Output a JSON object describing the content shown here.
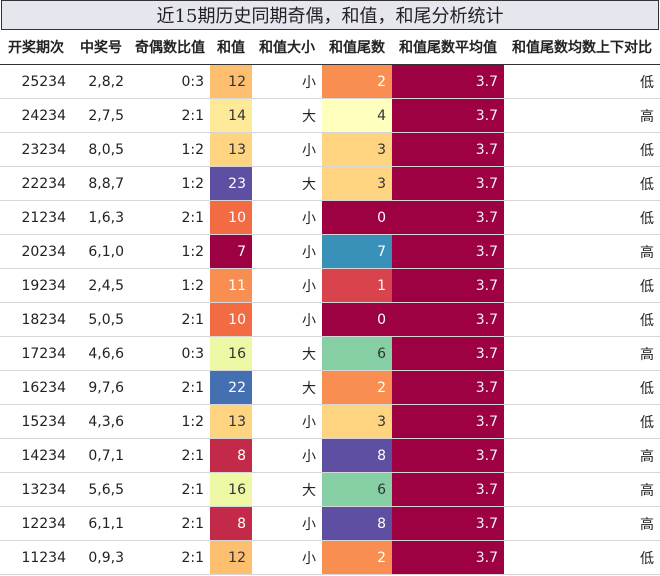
{
  "title": "近15期历史同期奇偶，和值，和尾分析统计",
  "headers": [
    "开奖期次",
    "中奖号",
    "奇偶数比值",
    "和值",
    "和值大小",
    "和值尾数",
    "和值尾数平均值",
    "和值尾数均数上下对比"
  ],
  "rows": [
    {
      "period": "25234",
      "numbers": "2,8,2",
      "ratio": "0:3",
      "sum": "12",
      "size": "小",
      "tail": "2",
      "avg": "3.7",
      "cmp": "低",
      "sum_bg": "#fdbf6f",
      "sum_fg": "#333333",
      "tail_bg": "#f98e52",
      "tail_fg": "#ffffff"
    },
    {
      "period": "24234",
      "numbers": "2,7,5",
      "ratio": "2:1",
      "sum": "14",
      "size": "大",
      "tail": "4",
      "avg": "3.7",
      "cmp": "高",
      "sum_bg": "#fee999",
      "sum_fg": "#333333",
      "tail_bg": "#ffffbe",
      "tail_fg": "#333333"
    },
    {
      "period": "23234",
      "numbers": "8,0,5",
      "ratio": "1:2",
      "sum": "13",
      "size": "小",
      "tail": "3",
      "avg": "3.7",
      "cmp": "低",
      "sum_bg": "#fed481",
      "sum_fg": "#333333",
      "tail_bg": "#fed481",
      "tail_fg": "#333333"
    },
    {
      "period": "22234",
      "numbers": "8,8,7",
      "ratio": "1:2",
      "sum": "23",
      "size": "大",
      "tail": "3",
      "avg": "3.7",
      "cmp": "低",
      "sum_bg": "#5e4fa2",
      "sum_fg": "#ffffff",
      "tail_bg": "#fed481",
      "tail_fg": "#333333"
    },
    {
      "period": "21234",
      "numbers": "1,6,3",
      "ratio": "2:1",
      "sum": "10",
      "size": "小",
      "tail": "0",
      "avg": "3.7",
      "cmp": "低",
      "sum_bg": "#f36b43",
      "sum_fg": "#ffffff",
      "tail_bg": "#9e0142",
      "tail_fg": "#ffffff"
    },
    {
      "period": "20234",
      "numbers": "6,1,0",
      "ratio": "1:2",
      "sum": "7",
      "size": "小",
      "tail": "7",
      "avg": "3.7",
      "cmp": "高",
      "sum_bg": "#9e0142",
      "sum_fg": "#ffffff",
      "tail_bg": "#3990b9",
      "tail_fg": "#ffffff"
    },
    {
      "period": "19234",
      "numbers": "2,4,5",
      "ratio": "1:2",
      "sum": "11",
      "size": "小",
      "tail": "1",
      "avg": "3.7",
      "cmp": "低",
      "sum_bg": "#f98e52",
      "sum_fg": "#ffffff",
      "tail_bg": "#d8434e",
      "tail_fg": "#ffffff"
    },
    {
      "period": "18234",
      "numbers": "5,0,5",
      "ratio": "2:1",
      "sum": "10",
      "size": "小",
      "tail": "0",
      "avg": "3.7",
      "cmp": "低",
      "sum_bg": "#f36b43",
      "sum_fg": "#ffffff",
      "tail_bg": "#9e0142",
      "tail_fg": "#ffffff"
    },
    {
      "period": "17234",
      "numbers": "4,6,6",
      "ratio": "0:3",
      "sum": "16",
      "size": "大",
      "tail": "6",
      "avg": "3.7",
      "cmp": "高",
      "sum_bg": "#eef8a4",
      "sum_fg": "#333333",
      "tail_bg": "#86cfa5",
      "tail_fg": "#333333"
    },
    {
      "period": "16234",
      "numbers": "9,7,6",
      "ratio": "2:1",
      "sum": "22",
      "size": "大",
      "tail": "2",
      "avg": "3.7",
      "cmp": "低",
      "sum_bg": "#4470b1",
      "sum_fg": "#ffffff",
      "tail_bg": "#f98e52",
      "tail_fg": "#ffffff"
    },
    {
      "period": "15234",
      "numbers": "4,3,6",
      "ratio": "1:2",
      "sum": "13",
      "size": "小",
      "tail": "3",
      "avg": "3.7",
      "cmp": "低",
      "sum_bg": "#fed481",
      "sum_fg": "#333333",
      "tail_bg": "#fed481",
      "tail_fg": "#333333"
    },
    {
      "period": "14234",
      "numbers": "0,7,1",
      "ratio": "2:1",
      "sum": "8",
      "size": "小",
      "tail": "8",
      "avg": "3.7",
      "cmp": "高",
      "sum_bg": "#c32a4a",
      "sum_fg": "#ffffff",
      "tail_bg": "#5e4fa2",
      "tail_fg": "#ffffff"
    },
    {
      "period": "13234",
      "numbers": "5,6,5",
      "ratio": "2:1",
      "sum": "16",
      "size": "大",
      "tail": "6",
      "avg": "3.7",
      "cmp": "高",
      "sum_bg": "#eef8a4",
      "sum_fg": "#333333",
      "tail_bg": "#86cfa5",
      "tail_fg": "#333333"
    },
    {
      "period": "12234",
      "numbers": "6,1,1",
      "ratio": "2:1",
      "sum": "8",
      "size": "小",
      "tail": "8",
      "avg": "3.7",
      "cmp": "高",
      "sum_bg": "#c32a4a",
      "sum_fg": "#ffffff",
      "tail_bg": "#5e4fa2",
      "tail_fg": "#ffffff"
    },
    {
      "period": "11234",
      "numbers": "0,9,3",
      "ratio": "2:1",
      "sum": "12",
      "size": "小",
      "tail": "2",
      "avg": "3.7",
      "cmp": "低",
      "sum_bg": "#fdbf6f",
      "sum_fg": "#333333",
      "tail_bg": "#f98e52",
      "tail_fg": "#ffffff"
    }
  ]
}
